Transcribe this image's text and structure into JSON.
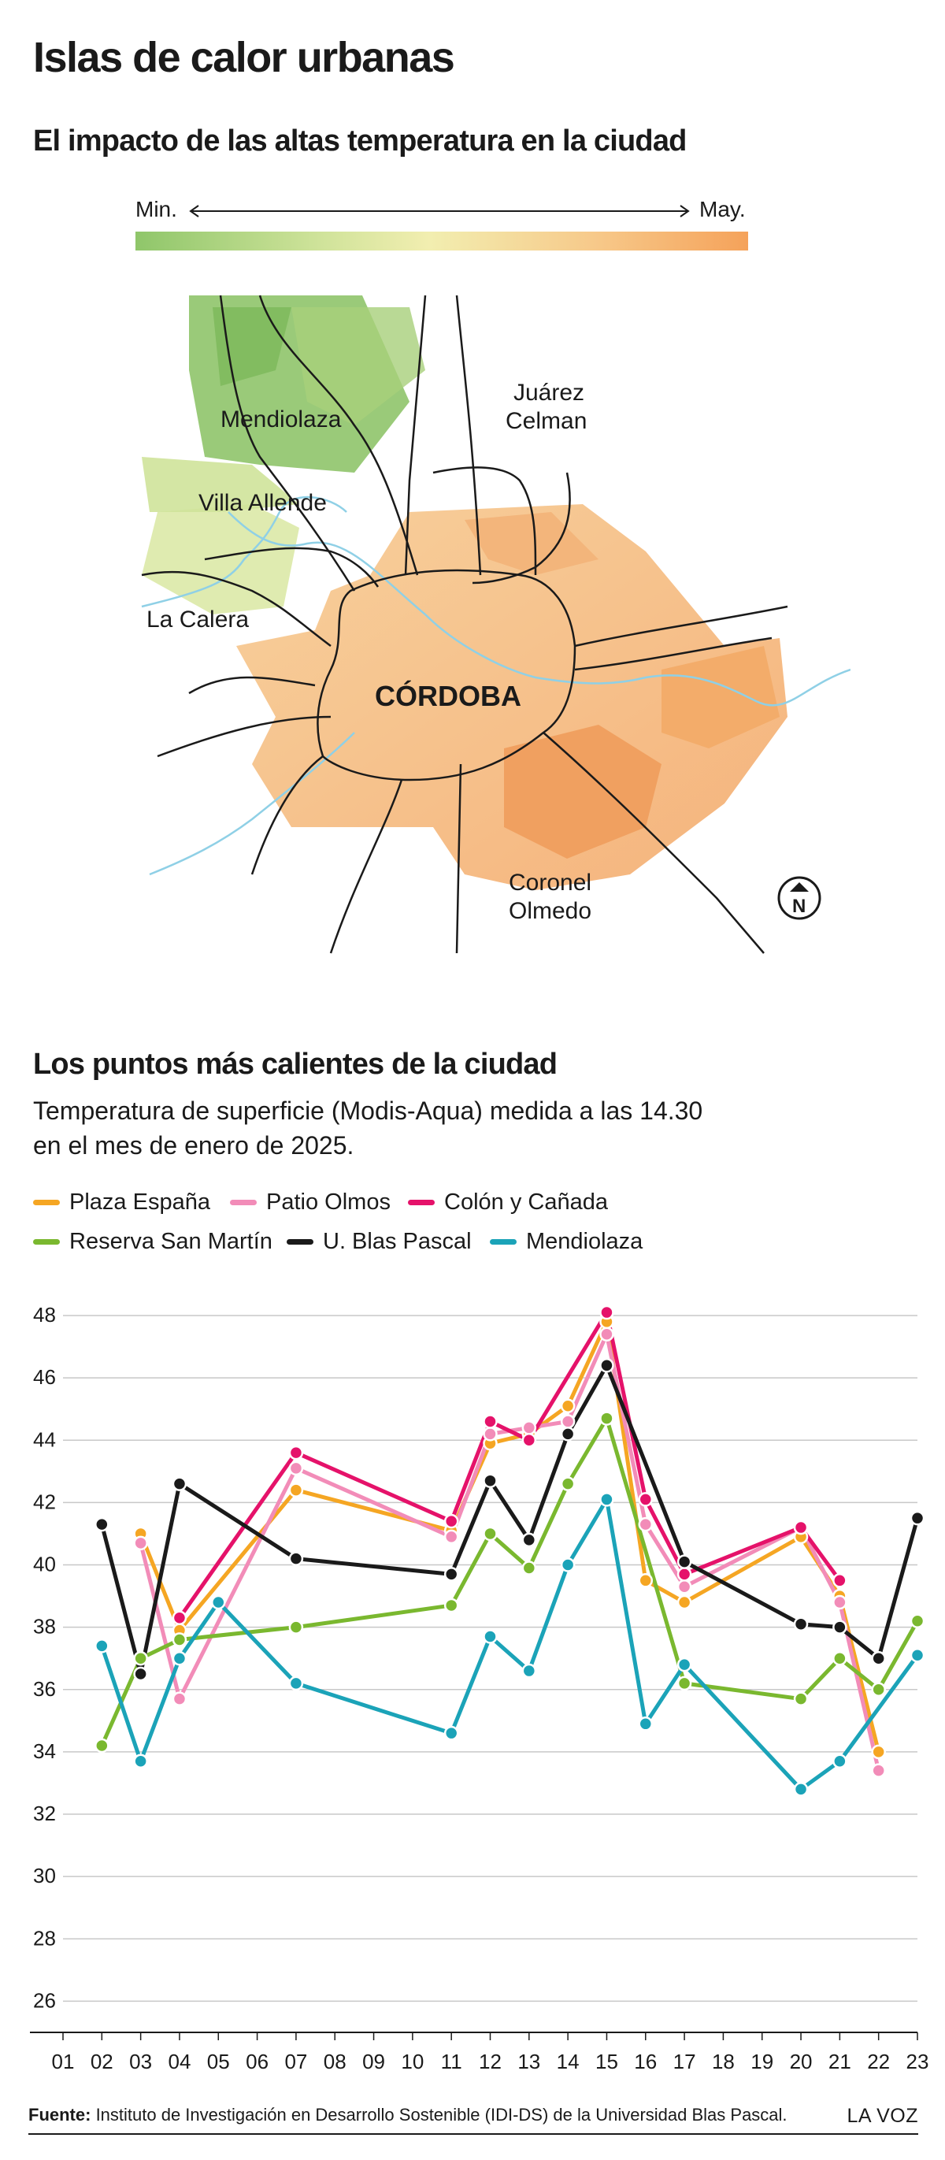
{
  "header": {
    "title": "Islas de calor urbanas",
    "subtitle": "El impacto de las altas temperatura en la ciudad",
    "scale_min": "Min.",
    "scale_max": "May."
  },
  "map": {
    "places": {
      "mendiolaza": "Mendiolaza",
      "villa_allende": "Villa Allende",
      "la_calera": "La Calera",
      "juarez_line1": "Juárez",
      "juarez_line2": "Celman",
      "cordoba": "CÓRDOBA",
      "coronel_line1": "Coronel",
      "coronel_line2": "Olmedo"
    },
    "north_symbol": "N"
  },
  "section": {
    "title": "Los puntos más calientes de la ciudad",
    "desc_line1": "Temperatura de superficie (Modis-Aqua) medida a las 14.30",
    "desc_line2": "en el mes de enero de 2025."
  },
  "chart_data": {
    "type": "line",
    "x": [
      "01",
      "02",
      "03",
      "04",
      "05",
      "06",
      "07",
      "08",
      "09",
      "10",
      "11",
      "12",
      "13",
      "14",
      "15",
      "16",
      "17",
      "18",
      "19",
      "20",
      "21",
      "22",
      "23"
    ],
    "ylim": [
      25,
      48
    ],
    "yticks": [
      26,
      28,
      30,
      32,
      34,
      36,
      38,
      40,
      42,
      44,
      46,
      48
    ],
    "grid": true,
    "legend_position": "top",
    "series": [
      {
        "name": "Plaza España",
        "color": "#f5a623",
        "points": [
          [
            "03",
            41.0
          ],
          [
            "04",
            37.9
          ],
          [
            "07",
            42.4
          ],
          [
            "11",
            41.1
          ],
          [
            "12",
            43.9
          ],
          [
            "13",
            44.2
          ],
          [
            "14",
            45.1
          ],
          [
            "15",
            47.8
          ],
          [
            "16",
            39.5
          ],
          [
            "17",
            38.8
          ],
          [
            "20",
            40.9
          ],
          [
            "21",
            39.0
          ],
          [
            "22",
            34.0
          ]
        ]
      },
      {
        "name": "Patio Olmos",
        "color": "#f28cb8",
        "points": [
          [
            "03",
            40.7
          ],
          [
            "04",
            35.7
          ],
          [
            "07",
            43.1
          ],
          [
            "11",
            40.9
          ],
          [
            "12",
            44.2
          ],
          [
            "13",
            44.4
          ],
          [
            "14",
            44.6
          ],
          [
            "15",
            47.4
          ],
          [
            "16",
            41.3
          ],
          [
            "17",
            39.3
          ],
          [
            "20",
            41.2
          ],
          [
            "21",
            38.8
          ],
          [
            "22",
            33.4
          ]
        ]
      },
      {
        "name": "Colón y Cañada",
        "color": "#e5126a",
        "points": [
          [
            "04",
            38.3
          ],
          [
            "07",
            43.6
          ],
          [
            "11",
            41.4
          ],
          [
            "12",
            44.6
          ],
          [
            "13",
            44.0
          ],
          [
            "15",
            48.1
          ],
          [
            "16",
            42.1
          ],
          [
            "17",
            39.7
          ],
          [
            "20",
            41.2
          ],
          [
            "21",
            39.5
          ]
        ]
      },
      {
        "name": "Reserva San Martín",
        "color": "#7ab82f",
        "points": [
          [
            "02",
            34.2
          ],
          [
            "03",
            37.0
          ],
          [
            "04",
            37.6
          ],
          [
            "07",
            38.0
          ],
          [
            "11",
            38.7
          ],
          [
            "12",
            41.0
          ],
          [
            "13",
            39.9
          ],
          [
            "14",
            42.6
          ],
          [
            "15",
            44.7
          ],
          [
            "17",
            36.2
          ],
          [
            "20",
            35.7
          ],
          [
            "21",
            37.0
          ],
          [
            "22",
            36.0
          ],
          [
            "23",
            38.2
          ]
        ]
      },
      {
        "name": "U. Blas Pascal",
        "color": "#1a1a1a",
        "points": [
          [
            "02",
            41.3
          ],
          [
            "03",
            36.5
          ],
          [
            "04",
            42.6
          ],
          [
            "07",
            40.2
          ],
          [
            "11",
            39.7
          ],
          [
            "12",
            42.7
          ],
          [
            "13",
            40.8
          ],
          [
            "14",
            44.2
          ],
          [
            "15",
            46.4
          ],
          [
            "17",
            40.1
          ],
          [
            "20",
            38.1
          ],
          [
            "21",
            38.0
          ],
          [
            "22",
            37.0
          ],
          [
            "23",
            41.5
          ]
        ]
      },
      {
        "name": "Mendiolaza",
        "color": "#1ba3b8",
        "points": [
          [
            "02",
            37.4
          ],
          [
            "03",
            33.7
          ],
          [
            "04",
            37.0
          ],
          [
            "05",
            38.8
          ],
          [
            "07",
            36.2
          ],
          [
            "11",
            34.6
          ],
          [
            "12",
            37.7
          ],
          [
            "13",
            36.6
          ],
          [
            "14",
            40.0
          ],
          [
            "15",
            42.1
          ],
          [
            "16",
            34.9
          ],
          [
            "17",
            36.8
          ],
          [
            "20",
            32.8
          ],
          [
            "21",
            33.7
          ],
          [
            "23",
            37.1
          ]
        ]
      }
    ]
  },
  "footer": {
    "source_label": "Fuente:",
    "source_text": " Instituto de Investigación en Desarrollo Sostenible (IDI-DS) de la Universidad Blas Pascal.",
    "brand": "LA VOZ"
  }
}
